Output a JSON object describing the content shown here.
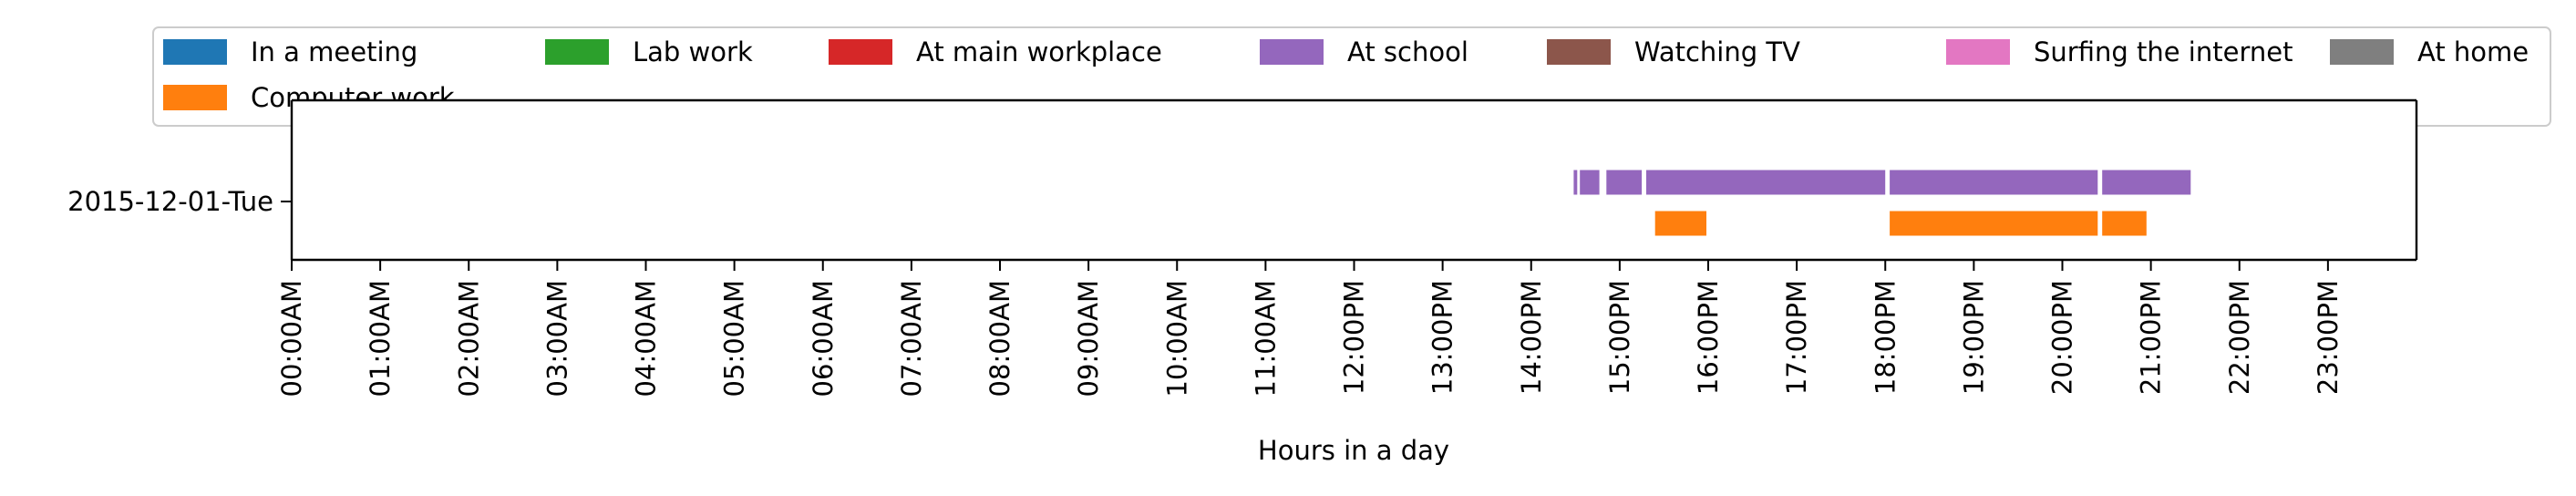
{
  "chart_data": {
    "type": "timeline",
    "xlabel": "Hours in a day",
    "xlim": [
      0,
      24
    ],
    "x_tick_labels": [
      "00:00AM",
      "01:00AM",
      "02:00AM",
      "03:00AM",
      "04:00AM",
      "05:00AM",
      "06:00AM",
      "07:00AM",
      "08:00AM",
      "09:00AM",
      "10:00AM",
      "11:00AM",
      "12:00PM",
      "13:00PM",
      "14:00PM",
      "15:00PM",
      "16:00PM",
      "17:00PM",
      "18:00PM",
      "19:00PM",
      "20:00PM",
      "21:00PM",
      "22:00PM",
      "23:00PM"
    ],
    "categories": [
      "2015-12-01-Tue"
    ],
    "legend": {
      "placement": "top",
      "entries": [
        {
          "name": "In a meeting",
          "color": "#1f77b4"
        },
        {
          "name": "Lab work",
          "color": "#2ca02c"
        },
        {
          "name": "At main workplace",
          "color": "#d62728"
        },
        {
          "name": "At school",
          "color": "#9467bd"
        },
        {
          "name": "Watching TV",
          "color": "#8c564b"
        },
        {
          "name": "Surfing the internet",
          "color": "#e377c2"
        },
        {
          "name": "At home",
          "color": "#7f7f7f"
        },
        {
          "name": "Computer work",
          "color": "#ff7f0e"
        }
      ]
    },
    "series": [
      {
        "name": "At school",
        "color": "#9467bd",
        "lane": "upper",
        "intervals": [
          [
            14.48,
            14.52
          ],
          [
            14.55,
            14.77
          ],
          [
            14.85,
            15.25
          ],
          [
            15.3,
            18.0
          ],
          [
            18.05,
            20.4
          ],
          [
            20.45,
            21.45
          ]
        ]
      },
      {
        "name": "Computer work",
        "color": "#ff7f0e",
        "lane": "lower",
        "intervals": [
          [
            15.4,
            15.98
          ],
          [
            18.05,
            20.4
          ],
          [
            20.45,
            20.95
          ]
        ]
      }
    ]
  }
}
